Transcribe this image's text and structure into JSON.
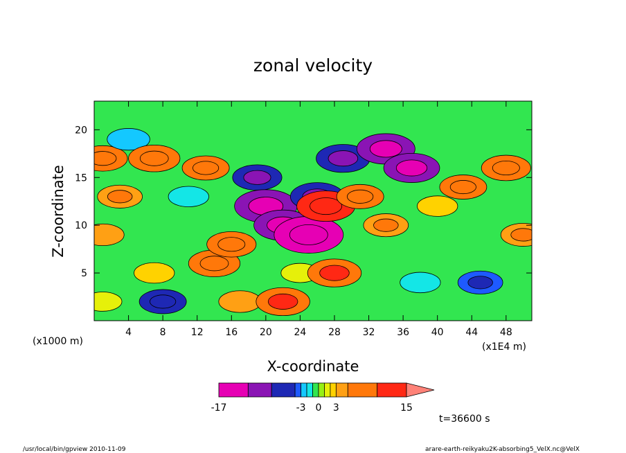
{
  "chart_data": {
    "type": "heatmap",
    "title": "zonal velocity",
    "xlabel": "X-coordinate",
    "ylabel": "Z-coordinate",
    "x_unit_label": "(x1000 m)",
    "y_unit_label": "(x1E4 m)",
    "xlim": [
      0,
      51
    ],
    "ylim": [
      0,
      23
    ],
    "x_ticks": [
      4,
      8,
      12,
      16,
      20,
      24,
      28,
      32,
      36,
      40,
      44,
      48
    ],
    "y_ticks": [
      5,
      10,
      15,
      20
    ],
    "x_tick_labels": [
      "4",
      "8",
      "12",
      "16",
      "20",
      "24",
      "28",
      "32",
      "36",
      "40",
      "44",
      "48"
    ],
    "y_tick_labels": [
      "5",
      "10",
      "15",
      "20"
    ],
    "colorbar": {
      "min": -17,
      "max": 15,
      "labels": [
        "-17",
        "-3",
        "0",
        "3",
        "15"
      ],
      "levels": [
        -17,
        -12,
        -8,
        -4,
        -3,
        -2,
        -1,
        0,
        1,
        2,
        3,
        5,
        10,
        15
      ],
      "colors": [
        "#e600b4",
        "#8a14b4",
        "#1e28b4",
        "#1e5aff",
        "#14c8ff",
        "#14e6e6",
        "#32e650",
        "#96f014",
        "#e6f00a",
        "#ffd200",
        "#ffa014",
        "#ff780a",
        "#ff2814",
        "#ff8278"
      ]
    },
    "time_label": "t=36600 s",
    "field": [
      {
        "x": 1,
        "z": 2,
        "v": 1
      },
      {
        "x": 1,
        "z": 9,
        "v": 3
      },
      {
        "x": 1,
        "z": 17,
        "v": 6
      },
      {
        "x": 3,
        "z": 13,
        "v": 4
      },
      {
        "x": 4,
        "z": 19,
        "v": -3
      },
      {
        "x": 7,
        "z": 17,
        "v": 7
      },
      {
        "x": 7,
        "z": 5,
        "v": 2
      },
      {
        "x": 8,
        "z": 2,
        "v": -5
      },
      {
        "x": 11,
        "z": 13,
        "v": -2
      },
      {
        "x": 13,
        "z": 16,
        "v": 5
      },
      {
        "x": 14,
        "z": 6,
        "v": 7
      },
      {
        "x": 16,
        "z": 8,
        "v": 6
      },
      {
        "x": 17,
        "z": 2,
        "v": 3
      },
      {
        "x": 19,
        "z": 15,
        "v": -6
      },
      {
        "x": 20,
        "z": 12,
        "v": -12
      },
      {
        "x": 22,
        "z": 10,
        "v": -10
      },
      {
        "x": 22,
        "z": 2,
        "v": 8
      },
      {
        "x": 24,
        "z": 5,
        "v": 1
      },
      {
        "x": 25,
        "z": 9,
        "v": -15
      },
      {
        "x": 26,
        "z": 13,
        "v": -8
      },
      {
        "x": 27,
        "z": 12,
        "v": 10
      },
      {
        "x": 28,
        "z": 5,
        "v": 8
      },
      {
        "x": 29,
        "z": 17,
        "v": -8
      },
      {
        "x": 31,
        "z": 13,
        "v": 5
      },
      {
        "x": 34,
        "z": 10,
        "v": 4
      },
      {
        "x": 34,
        "z": 18,
        "v": -10
      },
      {
        "x": 37,
        "z": 16,
        "v": -9
      },
      {
        "x": 38,
        "z": 4,
        "v": -2
      },
      {
        "x": 40,
        "z": 12,
        "v": 2
      },
      {
        "x": 43,
        "z": 14,
        "v": 5
      },
      {
        "x": 45,
        "z": 4,
        "v": -4
      },
      {
        "x": 48,
        "z": 16,
        "v": 6
      },
      {
        "x": 50,
        "z": 9,
        "v": 4
      }
    ]
  },
  "footer": {
    "left": "/usr/local/bin/gpview   2010-11-09",
    "right": "arare-earth-reikyaku2K-absorbing5_VelX.nc@VelX"
  }
}
